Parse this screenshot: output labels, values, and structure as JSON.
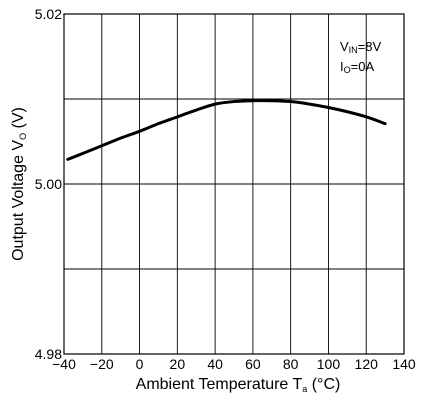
{
  "chart_data": {
    "type": "line",
    "xlabel_main": "Ambient Temperature T",
    "xlabel_sub": "a",
    "xlabel_unit": " (°C)",
    "ylabel_main": "Output Voltage V",
    "ylabel_sub": "O",
    "ylabel_unit": " (V)",
    "annotation_vin_main": "V",
    "annotation_vin_sub": "IN",
    "annotation_vin_value": "=8V",
    "annotation_io_main": "I",
    "annotation_io_sub": "O",
    "annotation_io_value": "=0A",
    "xlim": [
      -40,
      140
    ],
    "ylim": [
      4.98,
      5.02
    ],
    "x_ticks": [
      -40,
      -20,
      0,
      20,
      40,
      60,
      80,
      100,
      120,
      140
    ],
    "x_tick_labels": [
      "−40",
      "−20",
      "0",
      "20",
      "40",
      "60",
      "80",
      "100",
      "120",
      "140"
    ],
    "y_grid": [
      4.98,
      4.99,
      5.0,
      5.01,
      5.02
    ],
    "y_tick_labels": [
      {
        "value": 5.02,
        "label": "5.02"
      },
      {
        "value": 5.0,
        "label": "5.00"
      },
      {
        "value": 4.98,
        "label": "4.98"
      }
    ],
    "grid": true,
    "series": [
      {
        "x": [
          -38,
          -30,
          -20,
          -10,
          0,
          10,
          20,
          30,
          40,
          50,
          60,
          70,
          80,
          90,
          100,
          110,
          120,
          130
        ],
        "y": [
          5.0029,
          5.0036,
          5.0045,
          5.0054,
          5.0062,
          5.0071,
          5.0079,
          5.0087,
          5.0094,
          5.0097,
          5.0098,
          5.0098,
          5.0097,
          5.0094,
          5.009,
          5.0085,
          5.0079,
          5.0071
        ]
      }
    ]
  }
}
